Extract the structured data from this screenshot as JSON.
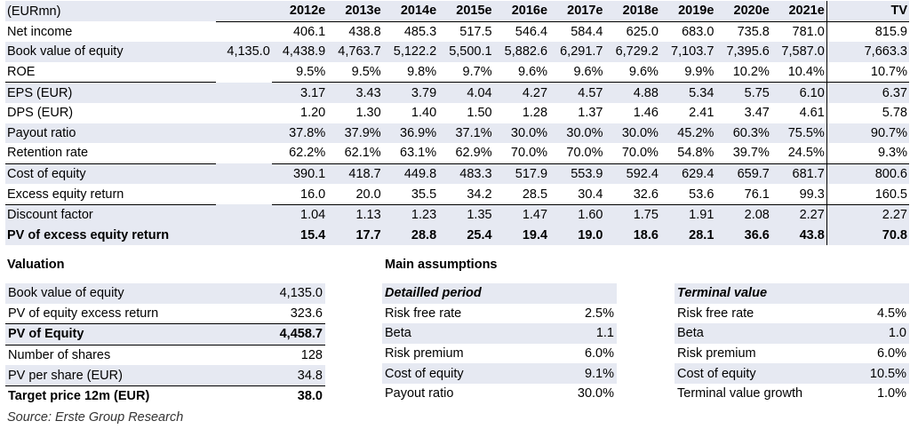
{
  "table": {
    "unit_label": "(EURmn)",
    "years": [
      "2012e",
      "2013e",
      "2014e",
      "2015e",
      "2016e",
      "2017e",
      "2018e",
      "2019e",
      "2020e",
      "2021e"
    ],
    "tv_label": "TV",
    "rows": [
      {
        "label": "Net income",
        "base": "",
        "values": [
          "406.1",
          "438.8",
          "485.3",
          "517.5",
          "546.4",
          "584.4",
          "625.0",
          "683.0",
          "735.8",
          "781.0"
        ],
        "tv": "815.9"
      },
      {
        "label": "Book value of equity",
        "base": "4,135.0",
        "values": [
          "4,438.9",
          "4,763.7",
          "5,122.2",
          "5,500.1",
          "5,882.6",
          "6,291.7",
          "6,729.2",
          "7,103.7",
          "7,395.6",
          "7,587.0"
        ],
        "tv": "7,663.3"
      },
      {
        "label": "ROE",
        "base": "",
        "values": [
          "9.5%",
          "9.5%",
          "9.8%",
          "9.7%",
          "9.6%",
          "9.6%",
          "9.6%",
          "9.9%",
          "10.2%",
          "10.4%"
        ],
        "tv": "10.7%"
      },
      {
        "label": "EPS (EUR)",
        "base": "",
        "values": [
          "3.17",
          "3.43",
          "3.79",
          "4.04",
          "4.27",
          "4.57",
          "4.88",
          "5.34",
          "5.75",
          "6.10"
        ],
        "tv": "6.37"
      },
      {
        "label": "DPS (EUR)",
        "base": "",
        "values": [
          "1.20",
          "1.30",
          "1.40",
          "1.50",
          "1.28",
          "1.37",
          "1.46",
          "2.41",
          "3.47",
          "4.61"
        ],
        "tv": "5.78"
      },
      {
        "label": "Payout ratio",
        "base": "",
        "values": [
          "37.8%",
          "37.9%",
          "36.9%",
          "37.1%",
          "30.0%",
          "30.0%",
          "30.0%",
          "45.2%",
          "60.3%",
          "75.5%"
        ],
        "tv": "90.7%"
      },
      {
        "label": "Retention rate",
        "base": "",
        "values": [
          "62.2%",
          "62.1%",
          "63.1%",
          "62.9%",
          "70.0%",
          "70.0%",
          "70.0%",
          "54.8%",
          "39.7%",
          "24.5%"
        ],
        "tv": "9.3%"
      },
      {
        "label": "Cost of equity",
        "base": "",
        "values": [
          "390.1",
          "418.7",
          "449.8",
          "483.3",
          "517.9",
          "553.9",
          "592.4",
          "629.4",
          "659.7",
          "681.7"
        ],
        "tv": "800.6"
      },
      {
        "label": "Excess equity return",
        "base": "",
        "values": [
          "16.0",
          "20.0",
          "35.5",
          "34.2",
          "28.5",
          "30.4",
          "32.6",
          "53.6",
          "76.1",
          "99.3"
        ],
        "tv": "160.5"
      },
      {
        "label": "Discount factor",
        "base": "",
        "values": [
          "1.04",
          "1.13",
          "1.23",
          "1.35",
          "1.47",
          "1.60",
          "1.75",
          "1.91",
          "2.08",
          "2.27"
        ],
        "tv": "2.27"
      },
      {
        "label": "PV of excess equity return",
        "base": "",
        "values": [
          "15.4",
          "17.7",
          "28.8",
          "25.4",
          "19.4",
          "19.0",
          "18.6",
          "28.1",
          "36.6",
          "43.8"
        ],
        "tv": "70.8"
      }
    ]
  },
  "valuation": {
    "title": "Valuation",
    "rows": [
      {
        "label": "Book value of equity",
        "value": "4,135.0"
      },
      {
        "label": "PV of equity excess return",
        "value": "323.6"
      },
      {
        "label": "PV of Equity",
        "value": "4,458.7"
      },
      {
        "label": "Number of shares",
        "value": "128"
      },
      {
        "label": "PV per share (EUR)",
        "value": "34.8"
      },
      {
        "label": "Target price 12m (EUR)",
        "value": "38.0"
      }
    ]
  },
  "assumptions": {
    "title": "Main assumptions",
    "detailed": {
      "heading": "Detailled period",
      "rows": [
        {
          "label": "Risk free rate",
          "value": "2.5%"
        },
        {
          "label": "Beta",
          "value": "1.1"
        },
        {
          "label": "Risk premium",
          "value": "6.0%"
        },
        {
          "label": "Cost of equity",
          "value": "9.1%"
        },
        {
          "label": "Payout ratio",
          "value": "30.0%"
        }
      ]
    },
    "terminal": {
      "heading": "Terminal value",
      "rows": [
        {
          "label": "Risk free rate",
          "value": "4.5%"
        },
        {
          "label": "Beta",
          "value": "1.0"
        },
        {
          "label": "Risk premium",
          "value": "6.0%"
        },
        {
          "label": "Cost of equity",
          "value": "10.5%"
        },
        {
          "label": "Terminal value growth",
          "value": "1.0%"
        }
      ]
    }
  },
  "source": "Source: Erste Group Research"
}
